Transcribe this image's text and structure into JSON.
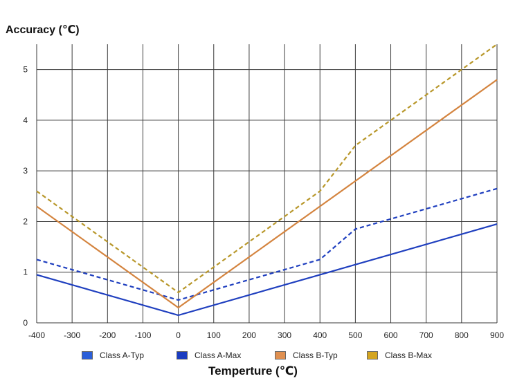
{
  "chart_data": {
    "type": "line",
    "ylabel": "Accuracy (℃)",
    "xlabel": "Temperture (℃)",
    "xlim": [
      -400,
      900
    ],
    "ylim": [
      0,
      5.5
    ],
    "xticks": [
      -400,
      -300,
      -200,
      -100,
      0,
      100,
      200,
      300,
      400,
      500,
      600,
      700,
      800,
      900
    ],
    "yticks": [
      0,
      1,
      2,
      3,
      4,
      5
    ],
    "grid": true,
    "legend_position": "bottom",
    "series": [
      {
        "name": "Class A-Typ",
        "color": "#1f3fbf",
        "swatch": "#2b5fd9",
        "dashed": false,
        "x": [
          -400,
          0,
          400,
          900
        ],
        "y": [
          0.95,
          0.15,
          0.95,
          1.95
        ]
      },
      {
        "name": "Class A-Max",
        "color": "#1f3fbf",
        "swatch": "#1a3cc0",
        "dashed": true,
        "x": [
          -400,
          0,
          400,
          500,
          900
        ],
        "y": [
          1.25,
          0.45,
          1.25,
          1.85,
          2.65
        ]
      },
      {
        "name": "Class B-Typ",
        "color": "#d4843f",
        "swatch": "#e09050",
        "dashed": false,
        "x": [
          -400,
          0,
          400,
          900
        ],
        "y": [
          2.3,
          0.3,
          2.3,
          4.8
        ]
      },
      {
        "name": "Class B-Max",
        "color": "#b8972a",
        "swatch": "#d4a520",
        "dashed": true,
        "x": [
          -400,
          0,
          400,
          500,
          900
        ],
        "y": [
          2.6,
          0.6,
          2.6,
          3.5,
          5.5
        ]
      }
    ]
  }
}
